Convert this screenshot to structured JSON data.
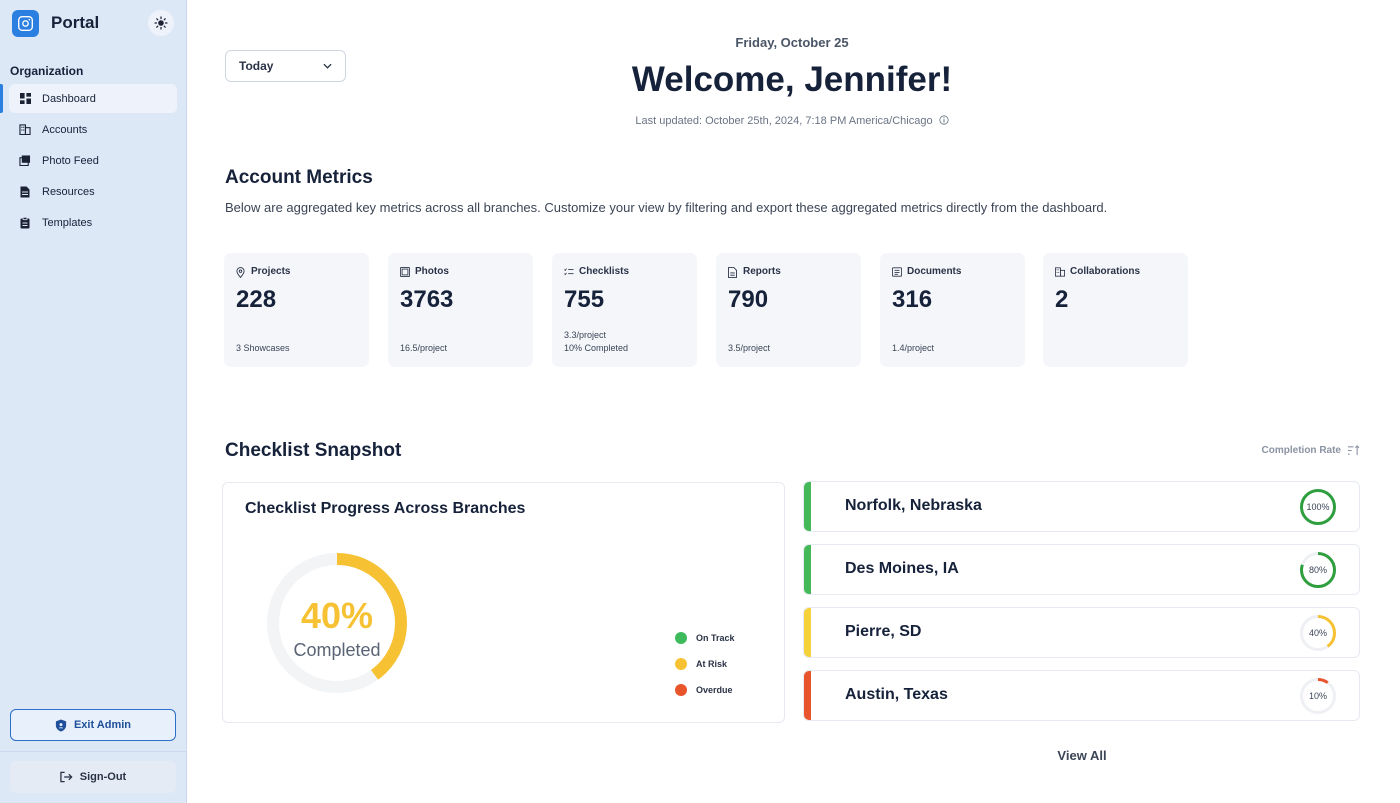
{
  "sidebar": {
    "app_name": "Portal",
    "section_label": "Organization",
    "items": [
      {
        "label": "Dashboard",
        "icon": "grid-icon",
        "active": true
      },
      {
        "label": "Accounts",
        "icon": "building-icon"
      },
      {
        "label": "Photo Feed",
        "icon": "photos-icon"
      },
      {
        "label": "Resources",
        "icon": "document-icon"
      },
      {
        "label": "Templates",
        "icon": "clipboard-icon"
      }
    ],
    "exit_admin_label": "Exit Admin",
    "sign_out_label": "Sign-Out"
  },
  "header": {
    "range_selected": "Today",
    "date": "Friday, October 25",
    "welcome": "Welcome, Jennifer!",
    "last_updated": "Last updated: October 25th, 2024, 7:18 PM America/Chicago"
  },
  "metrics_section": {
    "title": "Account Metrics",
    "description": "Below are aggregated key metrics across all branches. Customize your view by filtering and export these aggregated metrics directly from the dashboard.",
    "cards": [
      {
        "label": "Projects",
        "value": "228",
        "sub1": "",
        "sub2": "3 Showcases",
        "icon": "location-pin-icon"
      },
      {
        "label": "Photos",
        "value": "3763",
        "sub1": "",
        "sub2": "16.5/project",
        "icon": "photos-icon"
      },
      {
        "label": "Checklists",
        "value": "755",
        "sub1": "3.3/project",
        "sub2": "10% Completed",
        "icon": "checklist-icon"
      },
      {
        "label": "Reports",
        "value": "790",
        "sub1": "",
        "sub2": "3.5/project",
        "icon": "report-icon"
      },
      {
        "label": "Documents",
        "value": "316",
        "sub1": "",
        "sub2": "1.4/project",
        "icon": "documents-icon"
      },
      {
        "label": "Collaborations",
        "value": "2",
        "sub1": "",
        "sub2": "",
        "icon": "building-icon"
      }
    ]
  },
  "snapshot": {
    "title": "Checklist Snapshot",
    "sort_label": "Completion Rate",
    "progress_card_title": "Checklist Progress Across Branches",
    "completed_percent": 40,
    "completed_pct_text": "40%",
    "completed_label": "Completed",
    "legend": [
      {
        "label": "On Track",
        "color": "#3dbb5c"
      },
      {
        "label": "At Risk",
        "color": "#f6c234"
      },
      {
        "label": "Overdue",
        "color": "#e8552c"
      }
    ],
    "branches": [
      {
        "name": "Norfolk, Nebraska",
        "percent": 100,
        "percent_text": "100%",
        "color": "#2e9e3e"
      },
      {
        "name": "Des Moines, IA",
        "percent": 80,
        "percent_text": "80%",
        "color": "#2e9e3e"
      },
      {
        "name": "Pierre, SD",
        "percent": 40,
        "percent_text": "40%",
        "color": "#f6c234"
      },
      {
        "name": "Austin, Texas",
        "percent": 10,
        "percent_text": "10%",
        "color": "#e8552c"
      }
    ],
    "view_all_label": "View All"
  },
  "colors": {
    "accent": "#2b7fe0",
    "bar_green": "#45b858",
    "bar_yellow": "#f6d23a",
    "bar_red": "#e8552c"
  }
}
